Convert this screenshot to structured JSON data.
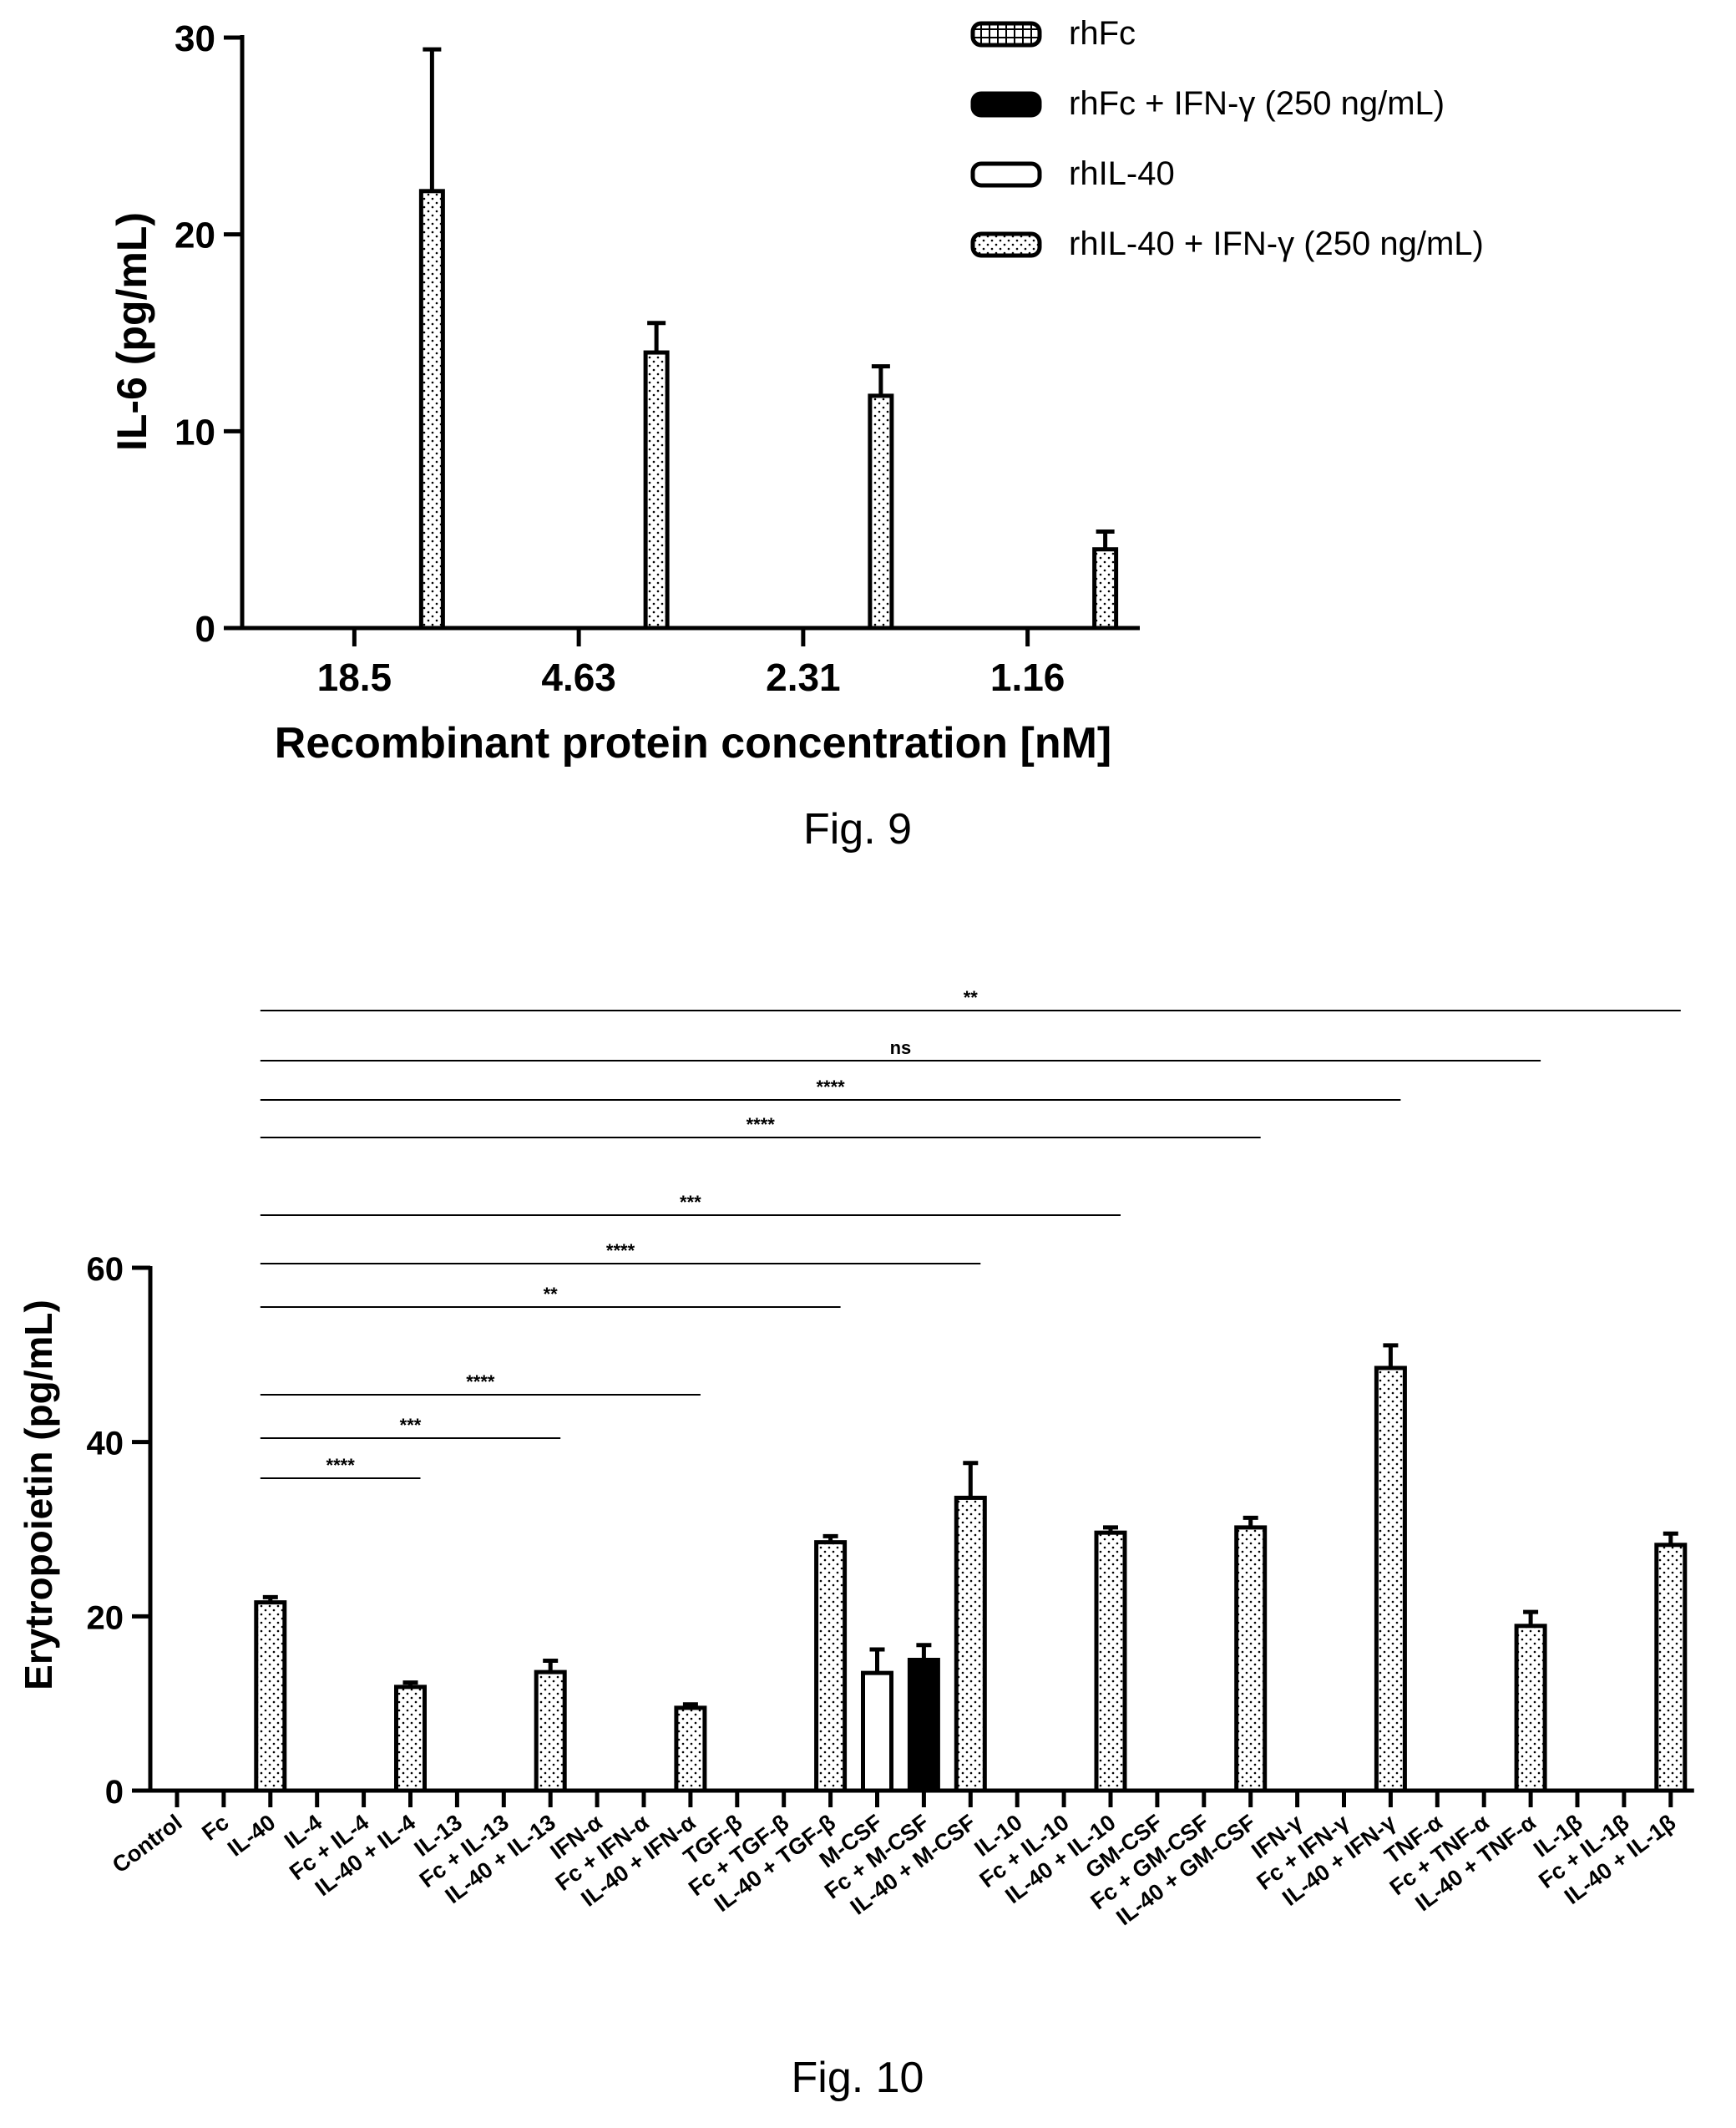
{
  "figures": [
    {
      "caption": "Fig. 9"
    },
    {
      "caption": "Fig. 10"
    }
  ],
  "chart_data": [
    {
      "type": "bar",
      "ylabel": "IL-6 (pg/mL)",
      "xlabel": "Recombinant protein concentration [nM]",
      "ylim": [
        0,
        30
      ],
      "yticks": [
        0,
        10,
        20,
        30
      ],
      "categories": [
        "18.5",
        "4.63",
        "2.31",
        "1.16"
      ],
      "legend_position": "top-right",
      "series": [
        {
          "name": "rhFc",
          "values": [
            0,
            0,
            0,
            0
          ],
          "errors": [
            0,
            0,
            0,
            0
          ],
          "fill": "crosshatch"
        },
        {
          "name": "rhFc + IFN-γ (250 ng/mL)",
          "values": [
            0,
            0,
            0,
            0
          ],
          "errors": [
            0,
            0,
            0,
            0
          ],
          "fill": "black"
        },
        {
          "name": "rhIL-40",
          "values": [
            0,
            0,
            0,
            0
          ],
          "errors": [
            0,
            0,
            0,
            0
          ],
          "fill": "white"
        },
        {
          "name": "rhIL-40 + IFN-γ (250 ng/mL)",
          "values": [
            22.2,
            14.0,
            11.8,
            4.0
          ],
          "errors": [
            7.2,
            1.5,
            1.5,
            0.9
          ],
          "fill": "dotted"
        }
      ]
    },
    {
      "type": "bar",
      "ylabel": "Erytropoietin (pg/mL)",
      "xlabel": "",
      "ylim": [
        0,
        60
      ],
      "yticks": [
        0,
        20,
        40,
        60
      ],
      "categories": [
        "Control",
        "Fc",
        "IL-40",
        "IL-4",
        "Fc + IL-4",
        "IL-40 + IL-4",
        "IL-13",
        "Fc + IL-13",
        "IL-40 + IL-13",
        "IFN-α",
        "Fc + IFN-α",
        "IL-40 + IFN-α",
        "TGF-β",
        "Fc + TGF-β",
        "IL-40 + TGF-β",
        "M-CSF",
        "Fc + M-CSF",
        "IL-40 + M-CSF",
        "IL-10",
        "Fc + IL-10",
        "IL-40 + IL-10",
        "GM-CSF",
        "Fc + GM-CSF",
        "IL-40 + GM-CSF",
        "IFN-γ",
        "Fc + IFN-γ",
        "IL-40 + IFN-γ",
        "TNF-α",
        "Fc + TNF-α",
        "IL-40 + TNF-α",
        "IL-1β",
        "Fc + IL-1β",
        "IL-40 + IL-1β"
      ],
      "values": [
        0,
        0,
        21.6,
        0,
        0,
        11.9,
        0,
        0,
        13.6,
        0,
        0,
        9.5,
        0,
        0,
        28.5,
        13.5,
        15.0,
        33.6,
        0,
        0,
        29.6,
        0,
        0,
        30.2,
        0,
        0,
        48.5,
        0,
        0,
        18.9,
        0,
        0,
        28.2
      ],
      "errors": [
        0,
        0,
        0.6,
        0,
        0,
        0.5,
        0,
        0,
        1.3,
        0,
        0,
        0.4,
        0,
        0,
        0.7,
        2.7,
        1.7,
        4.0,
        0,
        0,
        0.6,
        0,
        0,
        1.1,
        0,
        0,
        2.6,
        0,
        0,
        1.6,
        0,
        0,
        1.3
      ],
      "fills": [
        "none",
        "none",
        "dotted",
        "none",
        "none",
        "dotted",
        "none",
        "none",
        "dotted",
        "none",
        "none",
        "dotted",
        "none",
        "none",
        "dotted",
        "white",
        "black",
        "dotted",
        "none",
        "none",
        "dotted",
        "none",
        "none",
        "dotted",
        "none",
        "none",
        "dotted",
        "none",
        "none",
        "dotted",
        "none",
        "none",
        "dotted"
      ],
      "significance": [
        {
          "label": "**",
          "from": "IL-40",
          "to": "IL-40 + IL-1β"
        },
        {
          "label": "ns",
          "from": "IL-40",
          "to": "IL-40 + TNF-α"
        },
        {
          "label": "****",
          "from": "IL-40",
          "to": "IL-40 + IFN-γ"
        },
        {
          "label": "****",
          "from": "IL-40",
          "to": "IL-40 + GM-CSF"
        },
        {
          "label": "***",
          "from": "IL-40",
          "to": "IL-40 + IL-10"
        },
        {
          "label": "****",
          "from": "IL-40",
          "to": "IL-40 + M-CSF"
        },
        {
          "label": "**",
          "from": "IL-40",
          "to": "IL-40 + TGF-β"
        },
        {
          "label": "****",
          "from": "IL-40",
          "to": "IL-40 + IFN-α"
        },
        {
          "label": "***",
          "from": "IL-40",
          "to": "IL-40 + IL-13"
        },
        {
          "label": "****",
          "from": "IL-40",
          "to": "IL-40 + IL-4"
        }
      ]
    }
  ]
}
